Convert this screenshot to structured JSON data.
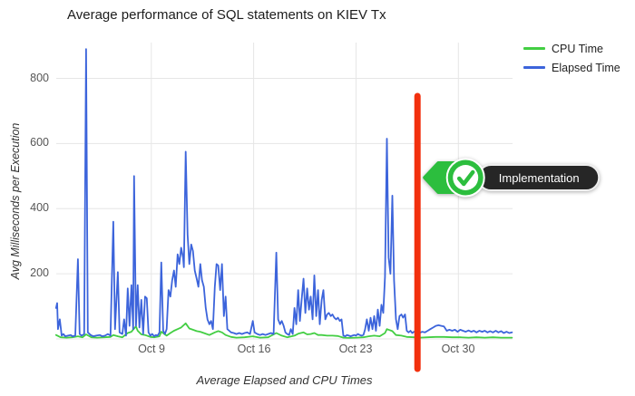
{
  "title": "Average performance of SQL statements on KIEV Tx",
  "legend": {
    "position": "top-right",
    "items": [
      {
        "label": "CPU Time",
        "color": "#43CE43"
      },
      {
        "label": "Elapsed Time",
        "color": "#3C64DB"
      }
    ]
  },
  "annotation": {
    "label": "Implementation",
    "badge_green": "#2CBE3E",
    "pill_dark": "#262626",
    "marker_red": "#F2300D"
  },
  "chart_data": {
    "type": "line",
    "title": "Average performance of SQL statements on KIEV Tx",
    "xlabel": "Average Elapsed and CPU Times",
    "ylabel": "Avg Milliseconds per Execution",
    "x_unit": "day of October (Oct 1 = 1)",
    "xlim": [
      1.5,
      32.7
    ],
    "ylim": [
      0,
      910
    ],
    "grid": true,
    "legend_position": "top-right",
    "y_ticks": [
      200,
      400,
      600,
      800
    ],
    "x_ticks": [
      {
        "x": 8,
        "label": "Oct 9"
      },
      {
        "x": 15,
        "label": "Oct 16"
      },
      {
        "x": 22,
        "label": "Oct 23"
      },
      {
        "x": 29,
        "label": "Oct 30"
      }
    ],
    "annotation_line": {
      "x": 26.2,
      "color": "#F2300D",
      "label": "Implementation"
    },
    "series": [
      {
        "name": "CPU Time",
        "color": "#43CE43",
        "points": [
          [
            1.49,
            12
          ],
          [
            1.8,
            5
          ],
          [
            2.2,
            4
          ],
          [
            2.6,
            5
          ],
          [
            2.98,
            8
          ],
          [
            3.3,
            5
          ],
          [
            3.54,
            14
          ],
          [
            3.9,
            5
          ],
          [
            4.3,
            4
          ],
          [
            4.8,
            5
          ],
          [
            5.21,
            6
          ],
          [
            5.4,
            12
          ],
          [
            5.71,
            8
          ],
          [
            6.02,
            5
          ],
          [
            6.39,
            18
          ],
          [
            6.64,
            22
          ],
          [
            6.82,
            32
          ],
          [
            6.95,
            38
          ],
          [
            7.07,
            25
          ],
          [
            7.32,
            14
          ],
          [
            7.57,
            12
          ],
          [
            7.94,
            6
          ],
          [
            8.19,
            5
          ],
          [
            8.56,
            8
          ],
          [
            8.68,
            22
          ],
          [
            9.05,
            10
          ],
          [
            9.3,
            18
          ],
          [
            9.55,
            25
          ],
          [
            9.8,
            30
          ],
          [
            10.04,
            35
          ],
          [
            10.35,
            48
          ],
          [
            10.6,
            32
          ],
          [
            10.85,
            28
          ],
          [
            11.1,
            24
          ],
          [
            11.35,
            22
          ],
          [
            11.59,
            18
          ],
          [
            11.97,
            12
          ],
          [
            12.34,
            20
          ],
          [
            12.58,
            24
          ],
          [
            12.83,
            20
          ],
          [
            13.08,
            12
          ],
          [
            13.45,
            6
          ],
          [
            13.82,
            4
          ],
          [
            14.38,
            5
          ],
          [
            14.94,
            8
          ],
          [
            15.43,
            4
          ],
          [
            15.99,
            5
          ],
          [
            16.55,
            18
          ],
          [
            16.92,
            10
          ],
          [
            17.29,
            5
          ],
          [
            17.79,
            10
          ],
          [
            18.04,
            16
          ],
          [
            18.41,
            20
          ],
          [
            18.66,
            14
          ],
          [
            18.9,
            15
          ],
          [
            19.15,
            18
          ],
          [
            19.4,
            12
          ],
          [
            19.65,
            12
          ],
          [
            20.02,
            10
          ],
          [
            20.39,
            10
          ],
          [
            20.76,
            9
          ],
          [
            21.13,
            4
          ],
          [
            21.51,
            3
          ],
          [
            22,
            4
          ],
          [
            22.5,
            5
          ],
          [
            22.87,
            8
          ],
          [
            23.24,
            10
          ],
          [
            23.61,
            8
          ],
          [
            23.98,
            18
          ],
          [
            24.11,
            30
          ],
          [
            24.48,
            24
          ],
          [
            24.73,
            12
          ],
          [
            25.1,
            10
          ],
          [
            25.47,
            6
          ],
          [
            25.96,
            5
          ],
          [
            26.34,
            4
          ],
          [
            26.9,
            5
          ],
          [
            27.45,
            6
          ],
          [
            28.01,
            6
          ],
          [
            28.57,
            5
          ],
          [
            29.13,
            5
          ],
          [
            29.69,
            4
          ],
          [
            30.24,
            5
          ],
          [
            30.8,
            4
          ],
          [
            31.36,
            5
          ],
          [
            31.92,
            4
          ],
          [
            32.47,
            4
          ],
          [
            32.66,
            4
          ]
        ]
      },
      {
        "name": "Elapsed Time",
        "color": "#3C64DB",
        "points": [
          [
            1.49,
            95
          ],
          [
            1.56,
            110
          ],
          [
            1.62,
            30
          ],
          [
            1.74,
            60
          ],
          [
            1.87,
            10
          ],
          [
            1.99,
            15
          ],
          [
            2.11,
            8
          ],
          [
            2.3,
            10
          ],
          [
            2.49,
            12
          ],
          [
            2.61,
            8
          ],
          [
            2.8,
            10
          ],
          [
            2.98,
            245
          ],
          [
            3.1,
            15
          ],
          [
            3.23,
            10
          ],
          [
            3.41,
            15
          ],
          [
            3.54,
            890
          ],
          [
            3.66,
            20
          ],
          [
            3.85,
            12
          ],
          [
            4.03,
            8
          ],
          [
            4.22,
            10
          ],
          [
            4.47,
            12
          ],
          [
            4.65,
            8
          ],
          [
            4.84,
            10
          ],
          [
            5.03,
            15
          ],
          [
            5.21,
            10
          ],
          [
            5.4,
            360
          ],
          [
            5.52,
            30
          ],
          [
            5.71,
            205
          ],
          [
            5.83,
            20
          ],
          [
            6.02,
            15
          ],
          [
            6.14,
            60
          ],
          [
            6.27,
            10
          ],
          [
            6.39,
            155
          ],
          [
            6.51,
            40
          ],
          [
            6.64,
            165
          ],
          [
            6.76,
            30
          ],
          [
            6.82,
            500
          ],
          [
            6.95,
            40
          ],
          [
            7.07,
            165
          ],
          [
            7.19,
            35
          ],
          [
            7.32,
            120
          ],
          [
            7.44,
            15
          ],
          [
            7.57,
            130
          ],
          [
            7.69,
            125
          ],
          [
            7.81,
            20
          ],
          [
            7.94,
            10
          ],
          [
            8.06,
            15
          ],
          [
            8.19,
            8
          ],
          [
            8.31,
            12
          ],
          [
            8.43,
            10
          ],
          [
            8.56,
            20
          ],
          [
            8.68,
            235
          ],
          [
            8.81,
            25
          ],
          [
            8.93,
            15
          ],
          [
            9.05,
            30
          ],
          [
            9.18,
            150
          ],
          [
            9.3,
            130
          ],
          [
            9.43,
            180
          ],
          [
            9.55,
            210
          ],
          [
            9.67,
            160
          ],
          [
            9.8,
            260
          ],
          [
            9.92,
            230
          ],
          [
            10.04,
            280
          ],
          [
            10.17,
            250
          ],
          [
            10.23,
            220
          ],
          [
            10.35,
            575
          ],
          [
            10.48,
            320
          ],
          [
            10.6,
            230
          ],
          [
            10.73,
            290
          ],
          [
            10.85,
            270
          ],
          [
            10.97,
            210
          ],
          [
            11.1,
            185
          ],
          [
            11.22,
            160
          ],
          [
            11.35,
            230
          ],
          [
            11.47,
            180
          ],
          [
            11.59,
            160
          ],
          [
            11.72,
            95
          ],
          [
            11.84,
            60
          ],
          [
            11.97,
            45
          ],
          [
            12.09,
            55
          ],
          [
            12.21,
            30
          ],
          [
            12.34,
            160
          ],
          [
            12.46,
            230
          ],
          [
            12.58,
            225
          ],
          [
            12.71,
            150
          ],
          [
            12.83,
            230
          ],
          [
            12.96,
            70
          ],
          [
            13.08,
            130
          ],
          [
            13.2,
            30
          ],
          [
            13.33,
            25
          ],
          [
            13.45,
            20
          ],
          [
            13.64,
            18
          ],
          [
            13.82,
            15
          ],
          [
            14.01,
            18
          ],
          [
            14.2,
            15
          ],
          [
            14.38,
            18
          ],
          [
            14.57,
            20
          ],
          [
            14.75,
            15
          ],
          [
            14.94,
            55
          ],
          [
            15.06,
            20
          ],
          [
            15.25,
            15
          ],
          [
            15.43,
            12
          ],
          [
            15.62,
            15
          ],
          [
            15.81,
            12
          ],
          [
            15.99,
            15
          ],
          [
            16.18,
            18
          ],
          [
            16.36,
            15
          ],
          [
            16.55,
            265
          ],
          [
            16.67,
            60
          ],
          [
            16.8,
            45
          ],
          [
            16.92,
            55
          ],
          [
            17.05,
            40
          ],
          [
            17.17,
            20
          ],
          [
            17.29,
            15
          ],
          [
            17.42,
            12
          ],
          [
            17.54,
            30
          ],
          [
            17.67,
            15
          ],
          [
            17.79,
            95
          ],
          [
            17.91,
            45
          ],
          [
            18.04,
            150
          ],
          [
            18.16,
            55
          ],
          [
            18.28,
            120
          ],
          [
            18.41,
            185
          ],
          [
            18.53,
            80
          ],
          [
            18.66,
            155
          ],
          [
            18.78,
            90
          ],
          [
            18.9,
            130
          ],
          [
            19.03,
            60
          ],
          [
            19.15,
            195
          ],
          [
            19.28,
            70
          ],
          [
            19.4,
            150
          ],
          [
            19.52,
            45
          ],
          [
            19.65,
            120
          ],
          [
            19.77,
            150
          ],
          [
            19.9,
            60
          ],
          [
            20.02,
            75
          ],
          [
            20.14,
            80
          ],
          [
            20.27,
            70
          ],
          [
            20.39,
            75
          ],
          [
            20.51,
            65
          ],
          [
            20.64,
            60
          ],
          [
            20.76,
            65
          ],
          [
            20.89,
            55
          ],
          [
            21.01,
            60
          ],
          [
            21.13,
            10
          ],
          [
            21.26,
            8
          ],
          [
            21.38,
            12
          ],
          [
            21.51,
            10
          ],
          [
            21.63,
            8
          ],
          [
            21.75,
            10
          ],
          [
            21.88,
            12
          ],
          [
            22,
            10
          ],
          [
            22.12,
            15
          ],
          [
            22.25,
            12
          ],
          [
            22.37,
            10
          ],
          [
            22.5,
            12
          ],
          [
            22.62,
            30
          ],
          [
            22.74,
            60
          ],
          [
            22.87,
            25
          ],
          [
            22.99,
            65
          ],
          [
            23.12,
            30
          ],
          [
            23.24,
            70
          ],
          [
            23.36,
            25
          ],
          [
            23.49,
            90
          ],
          [
            23.61,
            40
          ],
          [
            23.74,
            105
          ],
          [
            23.86,
            80
          ],
          [
            23.98,
            190
          ],
          [
            24.11,
            615
          ],
          [
            24.23,
            250
          ],
          [
            24.35,
            200
          ],
          [
            24.48,
            440
          ],
          [
            24.6,
            180
          ],
          [
            24.73,
            60
          ],
          [
            24.85,
            30
          ],
          [
            24.97,
            70
          ],
          [
            25.1,
            75
          ],
          [
            25.22,
            65
          ],
          [
            25.35,
            75
          ],
          [
            25.47,
            25
          ],
          [
            25.59,
            20
          ],
          [
            25.72,
            25
          ],
          [
            25.84,
            18
          ],
          [
            25.96,
            22
          ],
          [
            26.09,
            20
          ],
          [
            26.34,
            18
          ],
          [
            26.52,
            22
          ],
          [
            26.71,
            20
          ],
          [
            26.9,
            25
          ],
          [
            27.08,
            30
          ],
          [
            27.27,
            35
          ],
          [
            27.45,
            40
          ],
          [
            27.64,
            42
          ],
          [
            27.83,
            40
          ],
          [
            28.01,
            38
          ],
          [
            28.2,
            25
          ],
          [
            28.38,
            28
          ],
          [
            28.57,
            25
          ],
          [
            28.76,
            28
          ],
          [
            28.94,
            22
          ],
          [
            29.13,
            28
          ],
          [
            29.31,
            25
          ],
          [
            29.5,
            22
          ],
          [
            29.69,
            26
          ],
          [
            29.87,
            22
          ],
          [
            30.06,
            25
          ],
          [
            30.24,
            20
          ],
          [
            30.43,
            25
          ],
          [
            30.62,
            22
          ],
          [
            30.8,
            25
          ],
          [
            30.99,
            20
          ],
          [
            31.17,
            24
          ],
          [
            31.36,
            20
          ],
          [
            31.55,
            25
          ],
          [
            31.73,
            20
          ],
          [
            31.92,
            24
          ],
          [
            32.1,
            18
          ],
          [
            32.29,
            22
          ],
          [
            32.47,
            18
          ],
          [
            32.66,
            20
          ]
        ]
      }
    ]
  }
}
